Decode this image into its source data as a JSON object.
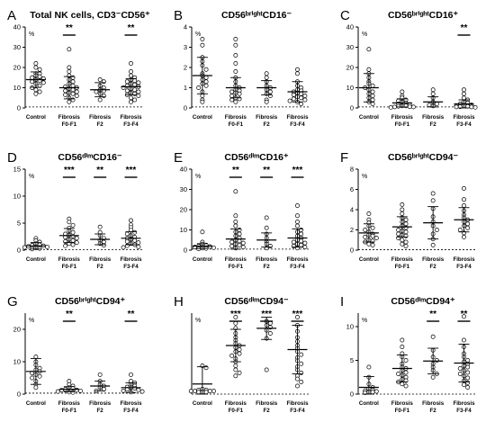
{
  "chart_data": [
    {
      "type": "scatter",
      "panel": "A",
      "title": "Total NK cells, CD3⁻CD56⁺",
      "ylabel": "%",
      "ylim": [
        0,
        40
      ],
      "yticks": [
        0,
        10,
        20,
        30,
        40
      ],
      "categories": [
        "Control",
        "Fibrosis F0-F1",
        "Fibrosis F2",
        "Fibrosis F3-F4"
      ],
      "reference_line": 0.5,
      "mean": [
        14,
        10,
        9,
        10.5
      ],
      "sd": [
        3.8,
        5.5,
        3.5,
        4
      ],
      "significance": [
        "",
        "**",
        "",
        "**"
      ],
      "points": [
        [
          20,
          19,
          17,
          17,
          16,
          15.5,
          15,
          14.5,
          14,
          13.5,
          13,
          12.5,
          12,
          11,
          10,
          9,
          8,
          7,
          22
        ],
        [
          29,
          20,
          18,
          16,
          15,
          14,
          13,
          12,
          11,
          10.5,
          10,
          9.5,
          9,
          8.5,
          8,
          7.5,
          7,
          6.5,
          6,
          5,
          4,
          3
        ],
        [
          14,
          13,
          11,
          10,
          9,
          8.5,
          8,
          7,
          6,
          4
        ],
        [
          22,
          18,
          16,
          15,
          14,
          13.5,
          13,
          12.5,
          12,
          11.5,
          11,
          10.5,
          10,
          9.5,
          9,
          8.5,
          8,
          7.5,
          7,
          6.5,
          6,
          5,
          4,
          3
        ]
      ]
    },
    {
      "type": "scatter",
      "panel": "B",
      "title": "CD56ᵇʳⁱᵍʰᵗCD16⁻",
      "ylabel": "%",
      "ylim": [
        0,
        4
      ],
      "yticks": [
        0,
        1,
        2,
        3,
        4
      ],
      "categories": [
        "Control",
        "Fibrosis F0-F1",
        "Fibrosis F2",
        "Fibrosis F3-F4"
      ],
      "reference_line": 0.05,
      "mean": [
        1.6,
        1.0,
        1.0,
        0.8
      ],
      "sd": [
        0.9,
        0.5,
        0.35,
        0.5
      ],
      "significance": [
        "",
        "",
        "",
        ""
      ],
      "points": [
        [
          3.4,
          3.1,
          2.5,
          2.3,
          2.1,
          1.9,
          1.7,
          1.6,
          1.5,
          1.4,
          1.3,
          1.2,
          1.1,
          1.0,
          0.8,
          0.6,
          0.4,
          0.3
        ],
        [
          3.4,
          3.1,
          2.6,
          2.2,
          1.8,
          1.5,
          1.3,
          1.1,
          1.0,
          0.9,
          0.85,
          0.8,
          0.75,
          0.7,
          0.6,
          0.5,
          0.45,
          0.4,
          0.3
        ],
        [
          1.7,
          1.5,
          1.3,
          1.1,
          1.0,
          0.9,
          0.8,
          0.7,
          0.6,
          0.4,
          0.3
        ],
        [
          1.9,
          1.7,
          1.3,
          1.1,
          1.0,
          0.9,
          0.85,
          0.8,
          0.75,
          0.7,
          0.65,
          0.6,
          0.55,
          0.5,
          0.45,
          0.4,
          0.35,
          0.3,
          0.2
        ]
      ]
    },
    {
      "type": "scatter",
      "panel": "C",
      "title": "CD56ᵇʳⁱᵍʰᵗCD16⁺",
      "ylabel": "%",
      "ylim": [
        0,
        40
      ],
      "yticks": [
        0,
        10,
        20,
        30,
        40
      ],
      "categories": [
        "Control",
        "Fibrosis F0-F1",
        "Fibrosis F2",
        "Fibrosis F3-F4"
      ],
      "reference_line": 0.5,
      "mean": [
        10,
        2.5,
        3,
        2
      ],
      "sd": [
        7,
        2,
        2.5,
        2
      ],
      "significance": [
        "",
        "",
        "",
        "**"
      ],
      "points": [
        [
          29,
          19,
          17,
          15,
          13,
          12,
          11,
          10,
          9,
          8,
          7,
          6,
          5,
          4,
          3,
          2
        ],
        [
          8,
          6,
          5,
          4,
          3.5,
          3,
          2.5,
          2,
          1.5,
          1,
          1,
          0.8,
          0.6,
          0.5,
          0.5,
          0.3
        ],
        [
          9,
          7,
          5,
          3,
          2,
          1.5,
          1
        ],
        [
          9,
          7,
          5,
          4,
          3,
          2.5,
          2,
          1.5,
          1.2,
          1,
          0.8,
          0.6,
          0.5,
          0.5,
          0.3
        ]
      ]
    },
    {
      "type": "scatter",
      "panel": "D",
      "title": "CD56ᵈⁱᵐCD16⁻",
      "ylabel": "%",
      "ylim": [
        0,
        15
      ],
      "yticks": [
        0,
        5,
        10,
        15
      ],
      "categories": [
        "Control",
        "Fibrosis F0-F1",
        "Fibrosis F2",
        "Fibrosis F3-F4"
      ],
      "reference_line": 0.1,
      "mean": [
        0.8,
        2.7,
        2.0,
        2.2
      ],
      "sd": [
        0.6,
        1.3,
        1.0,
        1.2
      ],
      "significance": [
        "",
        "***",
        "**",
        "***"
      ],
      "points": [
        [
          2.2,
          1.8,
          1.5,
          1.2,
          1.0,
          0.9,
          0.8,
          0.7,
          0.6,
          0.5,
          0.4,
          0.3,
          0.2
        ],
        [
          5.8,
          5.2,
          4.6,
          4.1,
          3.6,
          3.3,
          3.0,
          2.8,
          2.6,
          2.4,
          2.2,
          2.0,
          1.8,
          1.6,
          1.4,
          1.2,
          1.0,
          0.8
        ],
        [
          4.3,
          3.3,
          2.7,
          2.2,
          1.8,
          1.5,
          1.2,
          0.9
        ],
        [
          5.5,
          4.7,
          4.2,
          3.7,
          3.3,
          3.0,
          2.7,
          2.4,
          2.2,
          2.0,
          1.8,
          1.6,
          1.4,
          1.2,
          1.0,
          0.8,
          0.6,
          0.5
        ]
      ]
    },
    {
      "type": "scatter",
      "panel": "E",
      "title": "CD56ᵈⁱᵐCD16⁺",
      "ylabel": "%",
      "ylim": [
        0,
        40
      ],
      "yticks": [
        0,
        10,
        20,
        30,
        40
      ],
      "categories": [
        "Control",
        "Fibrosis F0-F1",
        "Fibrosis F2",
        "Fibrosis F3-F4"
      ],
      "reference_line": 0.5,
      "mean": [
        2,
        5.5,
        5,
        6
      ],
      "sd": [
        1.2,
        5,
        3.5,
        4.5
      ],
      "significance": [
        "",
        "**",
        "**",
        "***"
      ],
      "points": [
        [
          9,
          4,
          3,
          2.5,
          2,
          1.8,
          1.5,
          1.2,
          1,
          0.8,
          0.6
        ],
        [
          29,
          17,
          14,
          12,
          10,
          9,
          8,
          7,
          6,
          5,
          4.5,
          4,
          3.5,
          3,
          2.5,
          2,
          1.5,
          1
        ],
        [
          16,
          11,
          8,
          6,
          4,
          3,
          2,
          1
        ],
        [
          22,
          17,
          14,
          12,
          10,
          9,
          8,
          7,
          6,
          5,
          4.5,
          4,
          3.5,
          3,
          2.5,
          2,
          1.5,
          1
        ]
      ]
    },
    {
      "type": "scatter",
      "panel": "F",
      "title": "CD56ᵇʳⁱᵍʰᵗCD94⁻",
      "ylabel": "%",
      "ylim": [
        0,
        8
      ],
      "yticks": [
        0,
        2,
        4,
        6,
        8
      ],
      "categories": [
        "Control",
        "Fibrosis F0-F1",
        "Fibrosis F2",
        "Fibrosis F3-F4"
      ],
      "reference_line": 0.05,
      "mean": [
        1.7,
        2.3,
        2.7,
        3.0
      ],
      "sd": [
        0.9,
        1.0,
        1.6,
        1.2
      ],
      "significance": [
        "",
        "",
        "",
        ""
      ],
      "points": [
        [
          3.6,
          3.0,
          2.7,
          2.4,
          2.2,
          2.0,
          1.8,
          1.6,
          1.5,
          1.4,
          1.3,
          1.2,
          1.0,
          0.9,
          0.8,
          0.6,
          0.5
        ],
        [
          4.5,
          4.0,
          3.6,
          3.2,
          3.0,
          2.8,
          2.6,
          2.4,
          2.2,
          2.0,
          1.9,
          1.8,
          1.6,
          1.5,
          1.4,
          1.2,
          1.0,
          0.8,
          0.6,
          0.4
        ],
        [
          5.6,
          4.9,
          4.1,
          3.3,
          2.8,
          2.4,
          2.0,
          1.6,
          1.1,
          0.5
        ],
        [
          6.1,
          5.0,
          4.4,
          3.9,
          3.5,
          3.2,
          3.0,
          2.8,
          2.6,
          2.4,
          2.2,
          2.0,
          1.7,
          1.3
        ]
      ]
    },
    {
      "type": "scatter",
      "panel": "G",
      "title": "CD56ᵇʳⁱᵍʰᵗCD94⁺",
      "ylabel": "%",
      "ylim": [
        0,
        25
      ],
      "yticks": [
        0,
        10,
        20
      ],
      "categories": [
        "Control",
        "Fibrosis F0-F1",
        "Fibrosis F2",
        "Fibrosis F3-F4"
      ],
      "reference_line": 0.3,
      "mean": [
        7,
        1.5,
        2.5,
        2
      ],
      "sd": [
        4,
        0.8,
        1.5,
        1.5
      ],
      "significance": [
        "",
        "**",
        "",
        "**"
      ],
      "points": [
        [
          11.5,
          10,
          9,
          8,
          7.5,
          7,
          6.5,
          6,
          5.5,
          5,
          4,
          3,
          2
        ],
        [
          4,
          3,
          2.5,
          2,
          1.8,
          1.5,
          1.3,
          1.2,
          1,
          0.8,
          0.6,
          0.5
        ],
        [
          6,
          4,
          3,
          2.5,
          2,
          1.5,
          1
        ],
        [
          6,
          4,
          3.5,
          3,
          2.5,
          2.2,
          2,
          1.8,
          1.5,
          1.3,
          1,
          0.8,
          0.6
        ]
      ]
    },
    {
      "type": "scatter",
      "panel": "H",
      "title": "CD56ᵈⁱᵐCD94⁻",
      "ylabel": "%",
      "ylim": [
        0,
        8
      ],
      "yticks": [],
      "categories": [
        "Control",
        "Fibrosis F0-F1",
        "Fibrosis F2",
        "Fibrosis F3-F4"
      ],
      "reference_line": 0,
      "mean": [
        1.0,
        4.8,
        6.5,
        4.4
      ],
      "sd": [
        1.7,
        1.6,
        1.1,
        2.4
      ],
      "significance": [
        "",
        "***",
        "***",
        "***"
      ],
      "points": [
        [
          2.8,
          2.6,
          0.5,
          0.4,
          0.4,
          0.3,
          0.3,
          0.3,
          0.3,
          0.2,
          0.2,
          0.2
        ],
        [
          7.6,
          7.0,
          6.5,
          6.0,
          5.6,
          5.3,
          5.0,
          4.8,
          4.6,
          4.4,
          4.2,
          4.0,
          3.8,
          3.5,
          3.2,
          2.8,
          2.4,
          2.1,
          1.8
        ],
        [
          7.2,
          7.0,
          6.8,
          6.6,
          6.3,
          6.0,
          5.5,
          2.4
        ],
        [
          7.6,
          6.8,
          6.2,
          5.6,
          5.2,
          4.8,
          4.5,
          4.2,
          3.9,
          3.6,
          3.3,
          3.0,
          2.7,
          2.4,
          2.1,
          1.8,
          1.5,
          1.2,
          0.8
        ]
      ]
    },
    {
      "type": "scatter",
      "panel": "I",
      "title": "CD56ᵈⁱᵐCD94⁺",
      "ylabel": "%",
      "ylim": [
        0,
        12
      ],
      "yticks": [
        0,
        5,
        10
      ],
      "categories": [
        "Control",
        "Fibrosis F0-F1",
        "Fibrosis F2",
        "Fibrosis F3-F4"
      ],
      "reference_line": 0,
      "mean": [
        1,
        3.8,
        4.9,
        4.6
      ],
      "sd": [
        1.6,
        2.0,
        1.9,
        2.8
      ],
      "significance": [
        "",
        "",
        "**",
        "**"
      ],
      "points": [
        [
          4,
          2.5,
          1.5,
          1,
          0.8,
          0.6,
          0.5,
          0.4,
          0.3,
          0.3,
          0.2
        ],
        [
          8,
          7,
          6,
          5.5,
          5,
          4.5,
          4,
          3.8,
          3.5,
          3.2,
          3,
          2.8,
          2.5,
          2.2,
          2,
          1.8,
          1.5,
          1.2
        ],
        [
          8.5,
          6.5,
          5.5,
          5,
          4.5,
          4,
          3.5,
          3,
          2.5
        ],
        [
          11.5,
          8,
          7,
          6,
          5.5,
          5,
          4.8,
          4.5,
          4.2,
          4,
          3.8,
          3.5,
          3.2,
          3,
          2.7,
          2.4,
          2,
          1.7,
          1.4,
          1
        ]
      ]
    }
  ]
}
